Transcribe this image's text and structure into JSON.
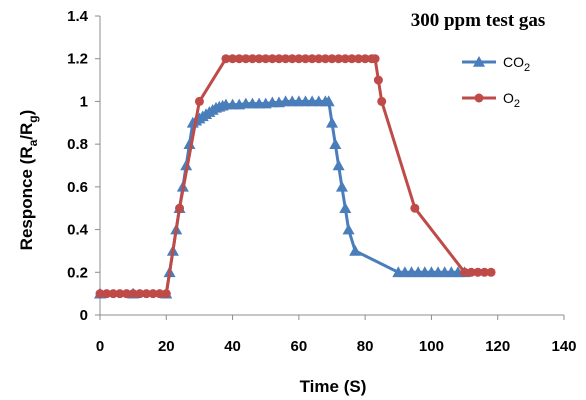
{
  "chart_data": {
    "type": "line",
    "title": "300 ppm test gas",
    "xlabel": "Time (S)",
    "ylabel": "Responce (Ra/Rg)",
    "ylabel_parts": {
      "main": "Responce (R",
      "sub1": "a",
      "mid": "/R",
      "sub2": "g",
      "end": ")"
    },
    "xlim": [
      0,
      140
    ],
    "ylim": [
      0,
      1.4
    ],
    "x_ticks": [
      "0",
      "20",
      "40",
      "60",
      "80",
      "100",
      "120",
      "140"
    ],
    "y_ticks": [
      "0",
      "0.2",
      "0.4",
      "0.6",
      "0.8",
      "1",
      "1.2",
      "1.4"
    ],
    "grid": false,
    "legend_position": "right",
    "series": [
      {
        "name": "CO2",
        "name_parts": {
          "main": "CO",
          "sub": "2"
        },
        "color": "#4a7ebb",
        "marker": "triangle",
        "points": [
          [
            0,
            0.1
          ],
          [
            10,
            0.1
          ],
          [
            20,
            0.1
          ],
          [
            21,
            0.2
          ],
          [
            22,
            0.3
          ],
          [
            23,
            0.4
          ],
          [
            24,
            0.5
          ],
          [
            25,
            0.6
          ],
          [
            26,
            0.7
          ],
          [
            27,
            0.8
          ],
          [
            28,
            0.9
          ],
          [
            29,
            0.91
          ],
          [
            30,
            0.92
          ],
          [
            31,
            0.93
          ],
          [
            32,
            0.94
          ],
          [
            33,
            0.95
          ],
          [
            34,
            0.96
          ],
          [
            35,
            0.97
          ],
          [
            36,
            0.975
          ],
          [
            37,
            0.98
          ],
          [
            38,
            0.985
          ],
          [
            40,
            0.985
          ],
          [
            42,
            0.985
          ],
          [
            44,
            0.99
          ],
          [
            46,
            0.99
          ],
          [
            48,
            0.99
          ],
          [
            50,
            0.99
          ],
          [
            52,
            0.995
          ],
          [
            54,
            0.995
          ],
          [
            56,
            1.0
          ],
          [
            58,
            1.0
          ],
          [
            60,
            1.0
          ],
          [
            62,
            1.0
          ],
          [
            64,
            1.0
          ],
          [
            66,
            1.0
          ],
          [
            68,
            1.0
          ],
          [
            69,
            1.0
          ],
          [
            70,
            0.9
          ],
          [
            71,
            0.8
          ],
          [
            72,
            0.7
          ],
          [
            73,
            0.6
          ],
          [
            74,
            0.5
          ],
          [
            75,
            0.4
          ],
          [
            77,
            0.3
          ],
          [
            90,
            0.2
          ],
          [
            92,
            0.2
          ],
          [
            94,
            0.2
          ],
          [
            96,
            0.2
          ],
          [
            98,
            0.2
          ],
          [
            100,
            0.2
          ],
          [
            102,
            0.2
          ],
          [
            104,
            0.2
          ],
          [
            106,
            0.2
          ],
          [
            108,
            0.2
          ],
          [
            110,
            0.2
          ]
        ]
      },
      {
        "name": "O2",
        "name_parts": {
          "main": "O",
          "sub": "2"
        },
        "color": "#be4b48",
        "marker": "circle",
        "points": [
          [
            0,
            0.1
          ],
          [
            2,
            0.1
          ],
          [
            4,
            0.1
          ],
          [
            6,
            0.1
          ],
          [
            8,
            0.1
          ],
          [
            10,
            0.1
          ],
          [
            12,
            0.1
          ],
          [
            14,
            0.1
          ],
          [
            16,
            0.1
          ],
          [
            18,
            0.1
          ],
          [
            20,
            0.1
          ],
          [
            24,
            0.5
          ],
          [
            30,
            1.0
          ],
          [
            38,
            1.2
          ],
          [
            40,
            1.2
          ],
          [
            42,
            1.2
          ],
          [
            44,
            1.2
          ],
          [
            46,
            1.2
          ],
          [
            48,
            1.2
          ],
          [
            50,
            1.2
          ],
          [
            52,
            1.2
          ],
          [
            54,
            1.2
          ],
          [
            56,
            1.2
          ],
          [
            58,
            1.2
          ],
          [
            60,
            1.2
          ],
          [
            62,
            1.2
          ],
          [
            64,
            1.2
          ],
          [
            66,
            1.2
          ],
          [
            68,
            1.2
          ],
          [
            70,
            1.2
          ],
          [
            72,
            1.2
          ],
          [
            74,
            1.2
          ],
          [
            76,
            1.2
          ],
          [
            78,
            1.2
          ],
          [
            80,
            1.2
          ],
          [
            82,
            1.2
          ],
          [
            83,
            1.2
          ],
          [
            84,
            1.1
          ],
          [
            85,
            1.0
          ],
          [
            95,
            0.5
          ],
          [
            110,
            0.2
          ],
          [
            112,
            0.2
          ],
          [
            114,
            0.2
          ],
          [
            116,
            0.2
          ],
          [
            118,
            0.2
          ]
        ]
      }
    ]
  }
}
